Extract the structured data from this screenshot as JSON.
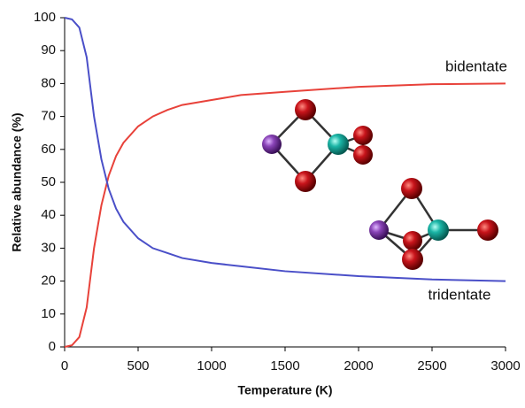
{
  "chart_data": {
    "type": "line",
    "x_label": "Temperature (K)",
    "y_label": "Relative abundance (%)",
    "xlim": [
      0,
      3000
    ],
    "xticks": [
      0,
      500,
      1000,
      1500,
      2000,
      2500,
      3000
    ],
    "ylim": [
      0,
      100
    ],
    "yticks": [
      0,
      10,
      20,
      30,
      40,
      50,
      60,
      70,
      80,
      90,
      100
    ],
    "grid": false,
    "annotations": [
      "bidentate",
      "tridentate"
    ],
    "series": [
      {
        "color": "#e8423a",
        "x": [
          0,
          50,
          100,
          150,
          200,
          250,
          300,
          350,
          400,
          500,
          600,
          700,
          800,
          1000,
          1200,
          1500,
          2000,
          2500,
          3000
        ],
        "values": [
          0,
          0.5,
          3,
          12,
          30,
          43,
          52,
          58,
          62,
          67,
          70,
          72,
          73.5,
          75,
          76.5,
          77.5,
          79,
          79.8,
          80
        ]
      },
      {
        "color": "#4a4fc8",
        "x": [
          0,
          50,
          100,
          150,
          200,
          250,
          300,
          350,
          400,
          500,
          600,
          700,
          800,
          1000,
          1200,
          1500,
          2000,
          2500,
          3000
        ],
        "values": [
          100,
          99.5,
          97,
          88,
          70,
          57,
          48,
          42,
          38,
          33,
          30,
          28.5,
          27,
          25.5,
          24.5,
          23,
          21.5,
          20.5,
          20
        ]
      }
    ]
  }
}
